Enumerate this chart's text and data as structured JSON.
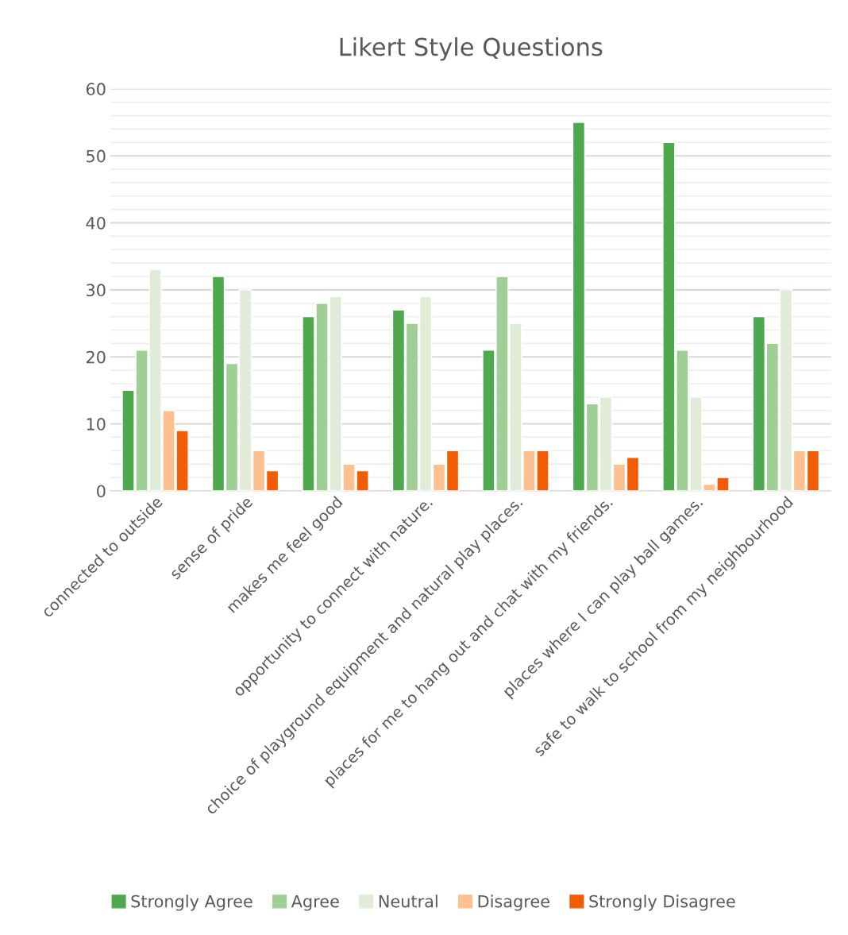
{
  "chart_data": {
    "type": "bar",
    "title": "Likert Style Questions",
    "categories": [
      "connected to outside",
      "sense of pride",
      "makes me feel good",
      "opportunity to connect with nature.",
      "choice of playground equipment and natural play places.",
      "places for me to hang out and chat with my friends.",
      "places where I can play ball games.",
      "safe to walk to school from my neighbourhood"
    ],
    "series": [
      {
        "name": "Strongly Agree",
        "color": "#4ea94e",
        "values": [
          15,
          32,
          26,
          27,
          21,
          55,
          52,
          26
        ]
      },
      {
        "name": "Agree",
        "color": "#a0cf96",
        "values": [
          21,
          19,
          28,
          25,
          32,
          13,
          21,
          22
        ]
      },
      {
        "name": "Neutral",
        "color": "#e0ebd8",
        "values": [
          33,
          30,
          29,
          29,
          25,
          14,
          14,
          30
        ]
      },
      {
        "name": "Disagree",
        "color": "#ffc08f",
        "values": [
          12,
          6,
          4,
          4,
          6,
          4,
          1,
          6
        ]
      },
      {
        "name": "Strongly Disagree",
        "color": "#f25c02",
        "values": [
          9,
          3,
          3,
          6,
          6,
          5,
          2,
          6
        ]
      }
    ],
    "ylim": [
      0,
      60
    ],
    "yticks": [
      0,
      {
        "value": 2,
        "label": null
      },
      {
        "value": 4,
        "label": null
      },
      {
        "value": 6,
        "label": null
      },
      {
        "value": 8,
        "label": null
      },
      10,
      {
        "value": 12,
        "label": null
      },
      {
        "value": 14,
        "label": null
      },
      {
        "value": 16,
        "label": null
      },
      {
        "value": 18,
        "label": null
      },
      20,
      {
        "value": 22,
        "label": null
      },
      {
        "value": 24,
        "label": null
      },
      {
        "value": 26,
        "label": null
      },
      {
        "value": 28,
        "label": null
      },
      30,
      {
        "value": 32,
        "label": null
      },
      {
        "value": 34,
        "label": null
      },
      {
        "value": 36,
        "label": null
      },
      {
        "value": 38,
        "label": null
      },
      40,
      {
        "value": 42,
        "label": null
      },
      {
        "value": 44,
        "label": null
      },
      {
        "value": 46,
        "label": null
      },
      {
        "value": 48,
        "label": null
      },
      50,
      {
        "value": 52,
        "label": null
      },
      {
        "value": 54,
        "label": null
      },
      {
        "value": 56,
        "label": null
      },
      {
        "value": 58,
        "label": null
      },
      60
    ],
    "grid": "y",
    "legend": "bottom"
  }
}
